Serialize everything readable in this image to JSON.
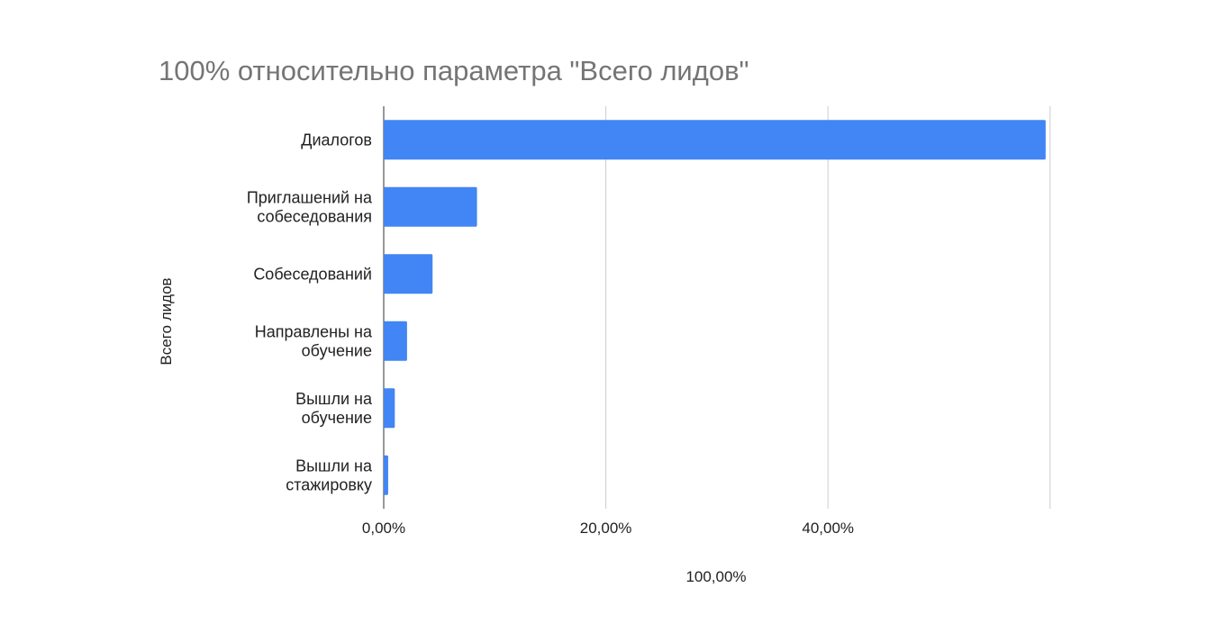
{
  "chart_data": {
    "type": "bar",
    "orientation": "horizontal",
    "title": "100% относительно параметра \"Всего лидов\"",
    "ylabel": "Всего лидов",
    "xlabel": "100,00%",
    "categories": [
      [
        "Диалогов"
      ],
      [
        "Приглашений на",
        "собеседования"
      ],
      [
        "Собеседований"
      ],
      [
        "Направлены на",
        "обучение"
      ],
      [
        "Вышли на",
        "обучение"
      ],
      [
        "Вышли на",
        "стажировку"
      ]
    ],
    "values": [
      59.6,
      8.4,
      4.4,
      2.1,
      1.0,
      0.4
    ],
    "x_ticks": [
      {
        "value": 0,
        "label": "0,00%"
      },
      {
        "value": 20,
        "label": "20,00%"
      },
      {
        "value": 40,
        "label": "40,00%"
      }
    ],
    "xlim": [
      0,
      60
    ],
    "grid": true,
    "bar_color": "#4285f4",
    "grid_color": "#cccccc",
    "legend": "none"
  }
}
